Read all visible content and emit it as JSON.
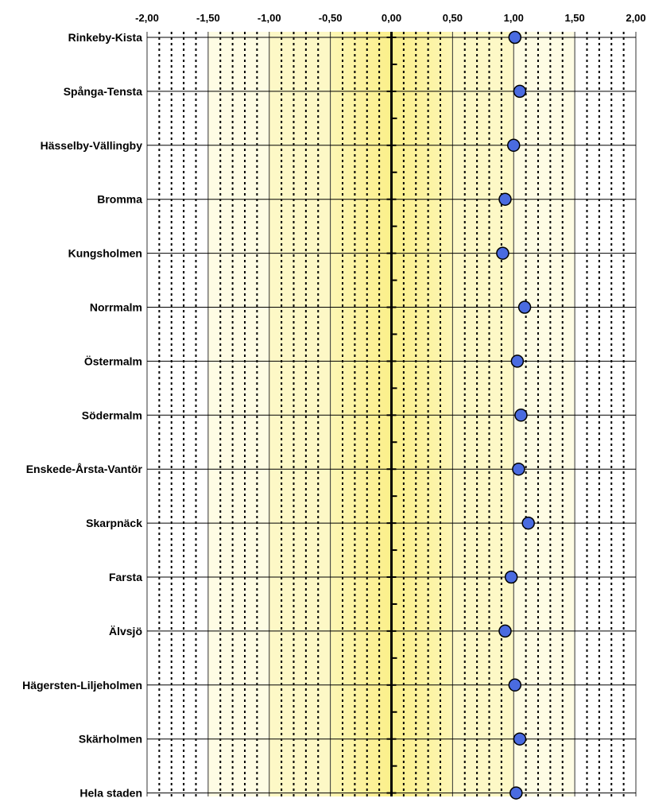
{
  "chart_data": {
    "type": "scatter",
    "orientation": "horizontal-dot-plot",
    "title": "",
    "xlabel": "",
    "ylabel": "",
    "xlim": [
      -2.0,
      2.0
    ],
    "x_ticks": [
      "-2,00",
      "-1,50",
      "-1,00",
      "-0,50",
      "0,00",
      "0,50",
      "1,00",
      "1,50",
      "2,00"
    ],
    "categories": [
      "Rinkeby-Kista",
      "Spånga-Tensta",
      "Hässelby-Vällingby",
      "Bromma",
      "Kungsholmen",
      "Norrmalm",
      "Östermalm",
      "Södermalm",
      "Enskede-Årsta-Vantör",
      "Skarpnäck",
      "Farsta",
      "Älvsjö",
      "Hägersten-Liljeholmen",
      "Skärholmen",
      "Hela staden"
    ],
    "values": [
      1.01,
      1.05,
      1.0,
      0.93,
      0.91,
      1.09,
      1.03,
      1.06,
      1.04,
      1.12,
      0.98,
      0.93,
      1.01,
      1.05,
      1.02
    ],
    "grid": true,
    "marker_color": "#4a6be0",
    "background_bands": [
      {
        "from": -0.5,
        "to": 0.5,
        "color": "#fcf3a0"
      },
      {
        "from": -1.0,
        "to": -0.5,
        "color": "#fdf8c6"
      },
      {
        "from": 0.5,
        "to": 1.0,
        "color": "#fdf8c6"
      },
      {
        "from": -1.5,
        "to": -1.0,
        "color": "#fefce4"
      },
      {
        "from": 1.0,
        "to": 1.5,
        "color": "#fefce4"
      }
    ]
  }
}
